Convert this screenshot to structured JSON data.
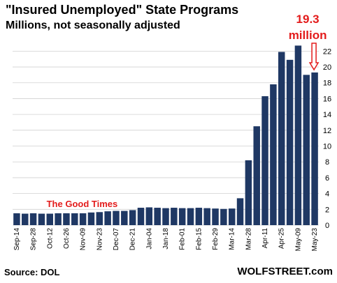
{
  "header": {
    "title": "\"Insured Unemployed\" State Programs",
    "subtitle": "Millions, not seasonally adjusted"
  },
  "footer": {
    "source": "Source: DOL",
    "brand": "WOLFSTREET.com"
  },
  "colors": {
    "bar": "#1f3864",
    "annotation": "#e31b1b",
    "grid": "#d0d0d0",
    "text": "#000000"
  },
  "chart_data": {
    "type": "bar",
    "title": "\"Insured Unemployed\" State Programs",
    "subtitle": "Millions, not seasonally adjusted",
    "xlabel": "",
    "ylabel": "",
    "ylim": [
      0,
      23
    ],
    "yticks": [
      0,
      2,
      4,
      6,
      8,
      10,
      12,
      14,
      16,
      18,
      20,
      22
    ],
    "y_axis_side": "right",
    "grid": true,
    "categories": [
      "Sep-14",
      "Sep-21",
      "Sep-28",
      "Oct-05",
      "Oct-12",
      "Oct-19",
      "Oct-26",
      "Nov-02",
      "Nov-09",
      "Nov-16",
      "Nov-23",
      "Nov-30",
      "Dec-07",
      "Dec-14",
      "Dec-21",
      "Dec-28",
      "Jan-04",
      "Jan-11",
      "Jan-18",
      "Jan-25",
      "Feb-01",
      "Feb-08",
      "Feb-15",
      "Feb-22",
      "Feb-29",
      "Mar-07",
      "Mar-14",
      "Mar-21",
      "Mar-28",
      "Apr-04",
      "Apr-11",
      "Apr-18",
      "Apr-25",
      "May-02",
      "May-09",
      "May-16",
      "May-23"
    ],
    "xtick_labels": [
      "Sep-14",
      "Sep-28",
      "Oct-12",
      "Oct-26",
      "Nov-09",
      "Nov-23",
      "Dec-07",
      "Dec-21",
      "Jan-04",
      "Jan-18",
      "Feb-01",
      "Feb-15",
      "Feb-29",
      "Mar-14",
      "Mar-28",
      "Apr-11",
      "Apr-25",
      "May-09",
      "May-23"
    ],
    "values": [
      1.5,
      1.45,
      1.5,
      1.45,
      1.45,
      1.5,
      1.5,
      1.5,
      1.5,
      1.6,
      1.65,
      1.75,
      1.8,
      1.8,
      1.9,
      2.2,
      2.25,
      2.2,
      2.15,
      2.2,
      2.15,
      2.15,
      2.2,
      2.15,
      2.1,
      2.05,
      2.1,
      3.4,
      8.2,
      12.5,
      16.3,
      17.8,
      21.9,
      20.9,
      22.7,
      19.0,
      19.3
    ],
    "annotations": [
      {
        "text": "The Good Times",
        "category": "Nov-09",
        "color": "red"
      },
      {
        "text": "19.3",
        "category": "May-23",
        "color": "red"
      },
      {
        "text": "million",
        "category": "May-23",
        "color": "red"
      }
    ]
  }
}
